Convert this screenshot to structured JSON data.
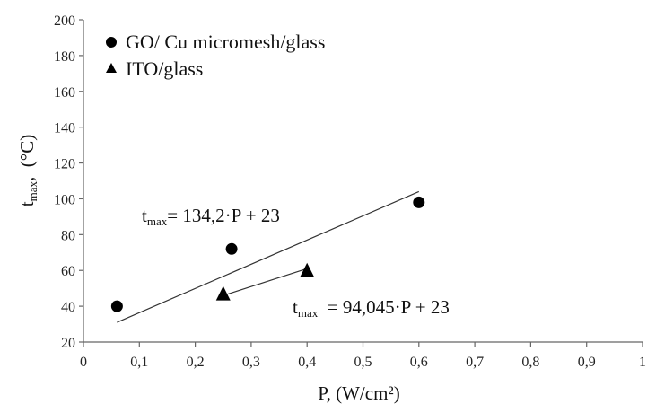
{
  "chart_data": {
    "type": "scatter",
    "xlabel": "P, (W/cm²)",
    "ylabel_main": "t",
    "ylabel_sub": "max",
    "ylabel_rest": ",  (°C)",
    "xlim": [
      0,
      1
    ],
    "ylim": [
      20,
      200
    ],
    "x_ticks": [
      "0",
      "0,1",
      "0,2",
      "0,3",
      "0,4",
      "0,5",
      "0,6",
      "0,7",
      "0,8",
      "0,9",
      "1"
    ],
    "y_ticks": [
      "20",
      "40",
      "60",
      "80",
      "100",
      "120",
      "140",
      "160",
      "180",
      "200"
    ],
    "grid": false,
    "legend_position": "top-left",
    "series": [
      {
        "name": "GO/ Cu micromesh/glass",
        "marker": "circle",
        "color": "#000000",
        "x": [
          0.06,
          0.265,
          0.6
        ],
        "y": [
          40,
          72,
          98
        ],
        "trendline": {
          "x": [
            0.06,
            0.6
          ],
          "y": [
            31,
            104
          ]
        }
      },
      {
        "name": "ITO/glass",
        "marker": "triangle",
        "color": "#000000",
        "x": [
          0.25,
          0.4
        ],
        "y": [
          47,
          60
        ],
        "trendline": {
          "x": [
            0.25,
            0.4
          ],
          "y": [
            46,
            61
          ]
        }
      }
    ],
    "annotations": [
      {
        "prefix": "t",
        "sub": "max",
        "text": "= 134,2·P + 23",
        "series": 0
      },
      {
        "prefix": "t",
        "sub": "max",
        "text": "  = 94,045·P + 23",
        "series": 1
      }
    ]
  }
}
